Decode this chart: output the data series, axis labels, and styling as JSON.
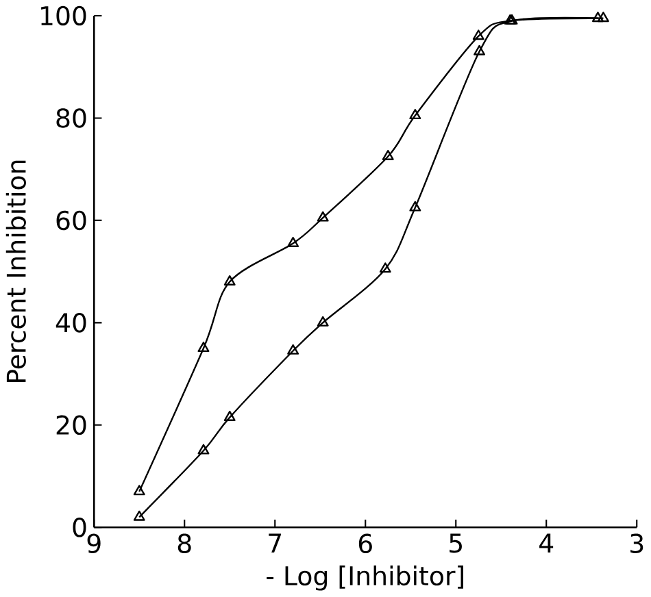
{
  "chart_data": {
    "type": "line",
    "xlabel": "- Log [Inhibitor]",
    "ylabel": "Percent Inhibition",
    "xlim": [
      9,
      3
    ],
    "xticks": [
      9,
      8,
      7,
      6,
      5,
      4,
      3
    ],
    "ylim": [
      0,
      100
    ],
    "yticks": [
      0,
      20,
      40,
      60,
      80,
      100
    ],
    "marker": "triangle",
    "line_style": "solid",
    "grid": false,
    "series": [
      {
        "color": "#000000",
        "x": [
          8.5,
          7.79,
          7.5,
          6.8,
          6.47,
          5.75,
          5.45,
          4.75,
          4.4,
          3.43
        ],
        "values": [
          7,
          35,
          48,
          55.5,
          60.5,
          72.5,
          80.5,
          96,
          99,
          99.5
        ]
      },
      {
        "color": "#000000",
        "x": [
          8.5,
          7.79,
          7.5,
          6.8,
          6.47,
          5.78,
          5.45,
          4.74,
          4.38,
          3.37
        ],
        "values": [
          2,
          15,
          21.5,
          34.5,
          40,
          50.5,
          62.5,
          93,
          99,
          99.5
        ]
      }
    ]
  }
}
